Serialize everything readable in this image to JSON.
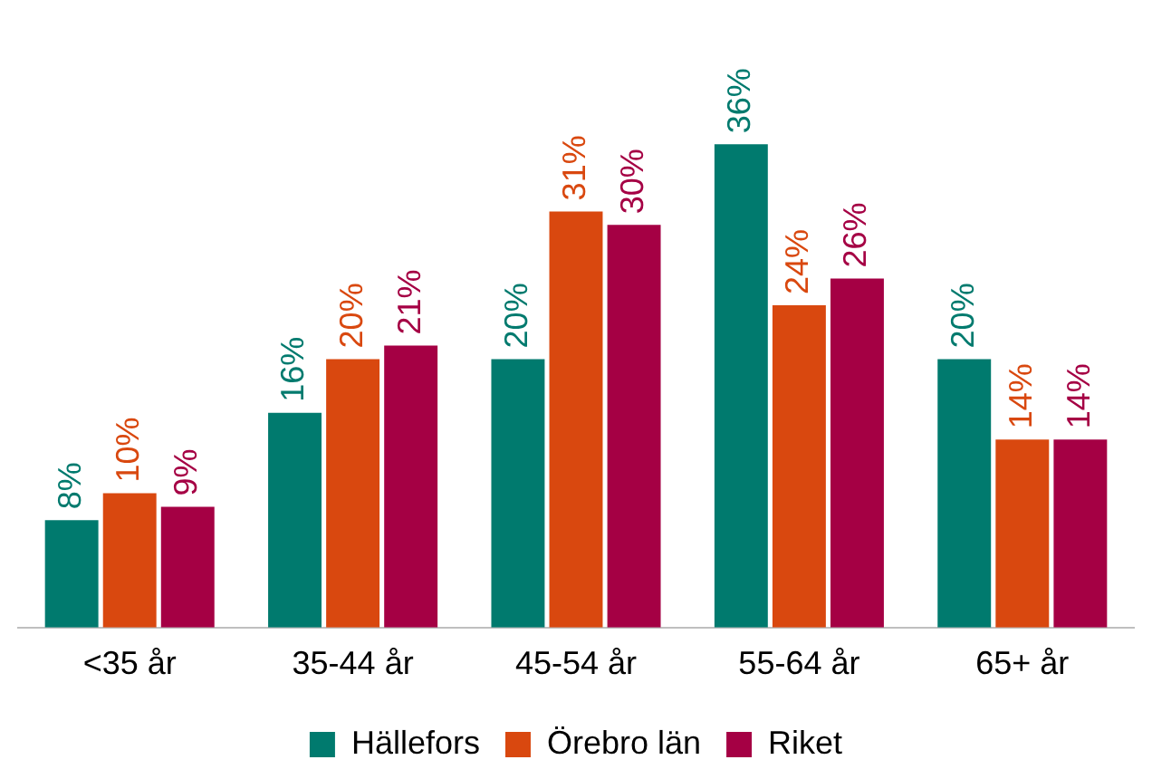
{
  "chart_data": {
    "type": "bar",
    "categories": [
      "<35 år",
      "35-44 år",
      "45-54 år",
      "55-64 år",
      "65+ år"
    ],
    "series": [
      {
        "name": "Hällefors",
        "color": "#007a6e",
        "values": [
          8,
          16,
          20,
          36,
          20
        ],
        "value_labels": [
          "8%",
          "16%",
          "20%",
          "36%",
          "20%"
        ]
      },
      {
        "name": "Örebro län",
        "color": "#d9480f",
        "values": [
          10,
          20,
          31,
          24,
          14
        ],
        "value_labels": [
          "10%",
          "20%",
          "31%",
          "24%",
          "14%"
        ]
      },
      {
        "name": "Riket",
        "color": "#a50044",
        "values": [
          9,
          21,
          30,
          26,
          14
        ],
        "value_labels": [
          "9%",
          "21%",
          "30%",
          "26%",
          "14%"
        ]
      }
    ],
    "legend": "bottom",
    "grid": false
  }
}
